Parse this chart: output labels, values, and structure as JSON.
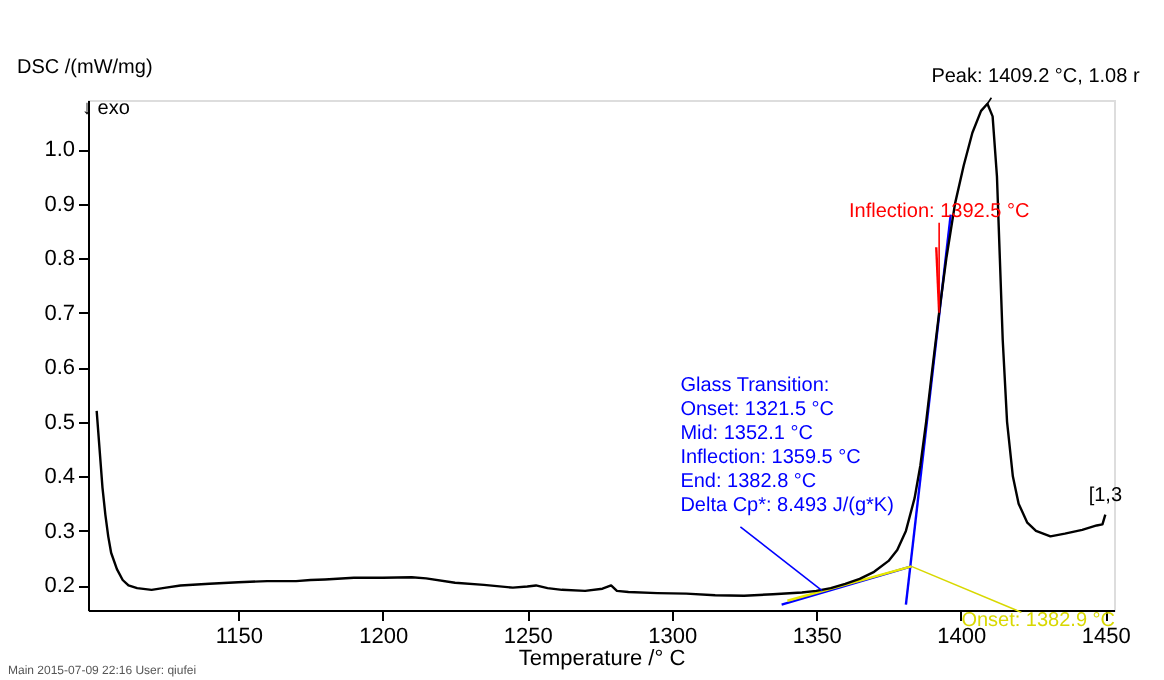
{
  "chart_data": {
    "type": "line",
    "xlabel": "Temperature /° C",
    "ylabel": "DSC /(mW/mg)",
    "xlim": [
      1098,
      1453
    ],
    "ylim": [
      0.155,
      1.09
    ],
    "xticks": [
      1150,
      1200,
      1250,
      1300,
      1350,
      1400,
      1450
    ],
    "yticks": [
      0.2,
      0.3,
      0.4,
      0.5,
      0.6,
      0.7,
      0.8,
      0.9,
      {
        "value": 1.0,
        "label": "1.0"
      }
    ],
    "series": [
      {
        "color": "#000000",
        "x": [
          1101,
          1102,
          1103,
          1104,
          1105,
          1106,
          1108,
          1110,
          1112,
          1115,
          1120,
          1125,
          1130,
          1140,
          1150,
          1160,
          1170,
          1175,
          1180,
          1190,
          1200,
          1210,
          1215,
          1225,
          1235,
          1245,
          1250,
          1253,
          1257,
          1262,
          1270,
          1276,
          1279,
          1281,
          1285,
          1295,
          1305,
          1315,
          1325,
          1335,
          1345,
          1350,
          1355,
          1360,
          1365,
          1370,
          1375,
          1378,
          1381,
          1384,
          1386,
          1388,
          1390,
          1392.5,
          1395,
          1398,
          1401,
          1404,
          1407,
          1409.2,
          1411,
          1412.5,
          1413.5,
          1414.5,
          1416,
          1418,
          1420,
          1423,
          1426,
          1431,
          1436,
          1442,
          1447,
          1449,
          1450
        ],
        "values": [
          0.52,
          0.45,
          0.38,
          0.33,
          0.29,
          0.26,
          0.23,
          0.21,
          0.2,
          0.195,
          0.192,
          0.196,
          0.2,
          0.203,
          0.206,
          0.208,
          0.208,
          0.21,
          0.211,
          0.214,
          0.214,
          0.215,
          0.213,
          0.205,
          0.201,
          0.196,
          0.198,
          0.2,
          0.195,
          0.192,
          0.19,
          0.194,
          0.2,
          0.19,
          0.188,
          0.186,
          0.185,
          0.182,
          0.181,
          0.184,
          0.187,
          0.19,
          0.195,
          0.203,
          0.212,
          0.225,
          0.245,
          0.265,
          0.3,
          0.36,
          0.42,
          0.5,
          0.59,
          0.7,
          0.8,
          0.9,
          0.97,
          1.03,
          1.07,
          1.083,
          1.06,
          0.95,
          0.8,
          0.65,
          0.5,
          0.4,
          0.35,
          0.315,
          0.3,
          0.29,
          0.295,
          0.302,
          0.31,
          0.312,
          0.33
        ]
      },
      {
        "color": "#0000ff",
        "x": [
          1381,
          1396.5
        ],
        "values": [
          0.165,
          0.88
        ]
      },
      {
        "color": "#0000ff",
        "x": [
          1338,
          1382.9
        ],
        "values": [
          0.165,
          0.235
        ]
      },
      {
        "color": "#e8e800",
        "x": [
          1340,
          1382.9
        ],
        "values": [
          0.172,
          0.235
        ]
      },
      {
        "color": "#ff0000",
        "x": [
          1391.5,
          1392.5
        ],
        "values": [
          0.82,
          0.7
        ]
      }
    ],
    "annotations": [
      {
        "text": "Peak: 1409.2 °C, 1.08 r",
        "x": 1409.2,
        "y": 1.083
      },
      {
        "text": "Inflection: 1392.5 °C",
        "x": 1392.5,
        "y": 0.7
      },
      {
        "text": "Glass Transition:\nOnset:       1321.5 °C\nMid:          1352.1 °C\nInflection:  1359.5 °C\nEnd:          1382.8 °C\nDelta Cp*:      8.493 J/(g*K)",
        "x": 1352.1,
        "y": 0.19
      },
      {
        "text": "Onset: 1382.9 °C",
        "x": 1382.9,
        "y": 0.235
      },
      {
        "text": "[1,3",
        "x": 1450,
        "y": 0.33
      },
      "↓ exo",
      "Main  2015-07-09 22:16   User: qiufei"
    ]
  }
}
